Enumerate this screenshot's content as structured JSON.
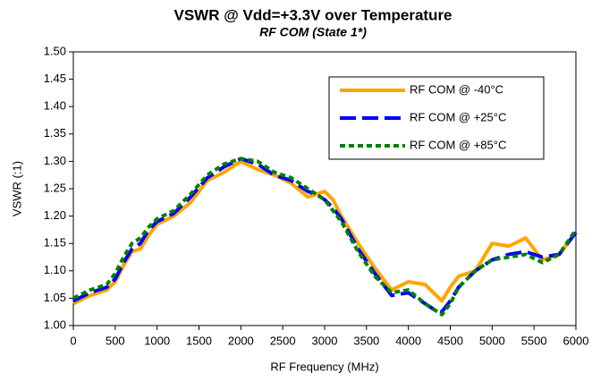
{
  "chart_data": {
    "type": "line",
    "title": "VSWR @ Vdd=+3.3V over Temperature",
    "subtitle": "RF COM (State 1*)",
    "x_label": "RF Frequency (MHz)",
    "y_label": "VSWR (:1)",
    "x": [
      0,
      200,
      400,
      500,
      600,
      700,
      800,
      900,
      1000,
      1200,
      1400,
      1600,
      1800,
      2000,
      2200,
      2400,
      2600,
      2800,
      2900,
      3000,
      3100,
      3200,
      3400,
      3600,
      3800,
      4000,
      4200,
      4300,
      4400,
      4500,
      4600,
      4800,
      5000,
      5200,
      5400,
      5600,
      5800,
      6000
    ],
    "series": [
      {
        "name": "RF COM @ -40°C",
        "color": "#ffa500",
        "dash": "none",
        "values": [
          1.04,
          1.055,
          1.065,
          1.08,
          1.11,
          1.135,
          1.14,
          1.165,
          1.185,
          1.2,
          1.225,
          1.265,
          1.28,
          1.3,
          1.285,
          1.275,
          1.26,
          1.235,
          1.24,
          1.245,
          1.23,
          1.2,
          1.15,
          1.105,
          1.065,
          1.08,
          1.075,
          1.06,
          1.045,
          1.07,
          1.09,
          1.1,
          1.15,
          1.145,
          1.16,
          1.12,
          1.13,
          1.17
        ]
      },
      {
        "name": "RF COM @ +25°C",
        "color": "#0000ff",
        "dash": "18 7",
        "values": [
          1.045,
          1.06,
          1.07,
          1.085,
          1.115,
          1.14,
          1.15,
          1.175,
          1.19,
          1.205,
          1.235,
          1.27,
          1.29,
          1.305,
          1.295,
          1.275,
          1.265,
          1.245,
          1.24,
          1.23,
          1.215,
          1.195,
          1.14,
          1.095,
          1.055,
          1.06,
          1.04,
          1.03,
          1.025,
          1.045,
          1.07,
          1.1,
          1.12,
          1.13,
          1.135,
          1.125,
          1.13,
          1.17
        ]
      },
      {
        "name": "RF COM @ +85°C",
        "color": "#008000",
        "dash": "6 4",
        "values": [
          1.05,
          1.065,
          1.075,
          1.095,
          1.125,
          1.15,
          1.16,
          1.18,
          1.195,
          1.21,
          1.24,
          1.275,
          1.295,
          1.305,
          1.3,
          1.28,
          1.27,
          1.25,
          1.24,
          1.23,
          1.21,
          1.19,
          1.135,
          1.09,
          1.06,
          1.065,
          1.04,
          1.03,
          1.02,
          1.04,
          1.07,
          1.1,
          1.12,
          1.125,
          1.13,
          1.115,
          1.13,
          1.175
        ]
      }
    ],
    "xlim": [
      0,
      6000
    ],
    "xticks": [
      0,
      500,
      1000,
      1500,
      2000,
      2500,
      3000,
      3500,
      4000,
      4500,
      5000,
      5500,
      6000
    ],
    "ylim": [
      1.0,
      1.5
    ],
    "yticks": [
      {
        "value": 1.0,
        "label": "1.00"
      },
      1.05,
      {
        "value": 1.1,
        "label": "1.10"
      },
      1.15,
      {
        "value": 1.2,
        "label": "1.20"
      },
      1.25,
      {
        "value": 1.3,
        "label": "1.30"
      },
      1.35,
      {
        "value": 1.4,
        "label": "1.40"
      },
      1.45,
      {
        "value": 1.5,
        "label": "1.50"
      }
    ],
    "grid": false,
    "legend": "upper right"
  }
}
